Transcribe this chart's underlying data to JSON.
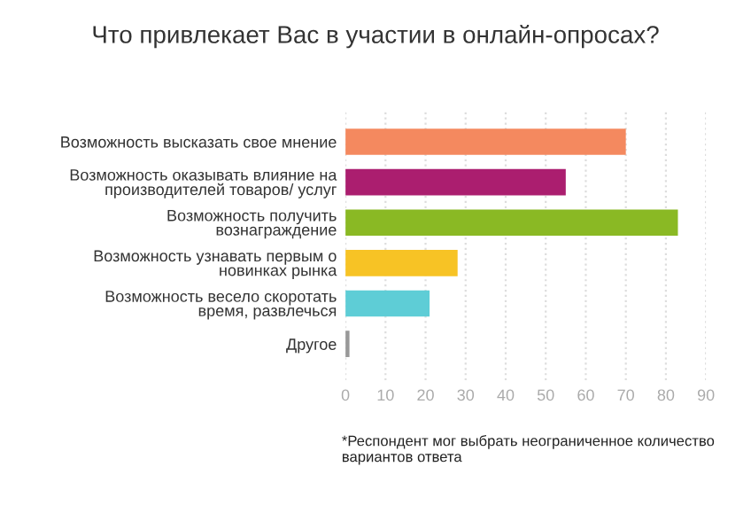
{
  "chart_data": {
    "type": "bar",
    "orientation": "horizontal",
    "title": "Что привлекает Вас в участии в онлайн-опросах?",
    "categories": [
      "Возможность высказать свое мнение",
      "Возможность оказывать влияние на\nпроизводителей товаров/ услуг",
      "Возможность получить\nвознаграждение",
      "Возможность узнавать первым о\nновинках рынка",
      "Возможность весело скоротать\nвремя, развлечься",
      "Другое"
    ],
    "values": [
      70,
      55,
      83,
      28,
      21,
      1
    ],
    "colors": [
      "#f4895f",
      "#ab1e6f",
      "#8ab924",
      "#f7c325",
      "#5ecdd6",
      "#999999"
    ],
    "xlim": [
      0,
      90
    ],
    "xticks": [
      0,
      10,
      20,
      30,
      40,
      50,
      60,
      70,
      80,
      90
    ],
    "grid": "x",
    "annotations": [
      "*Респондент мог выбрать неограниченное количество\nвариантов ответа"
    ]
  }
}
